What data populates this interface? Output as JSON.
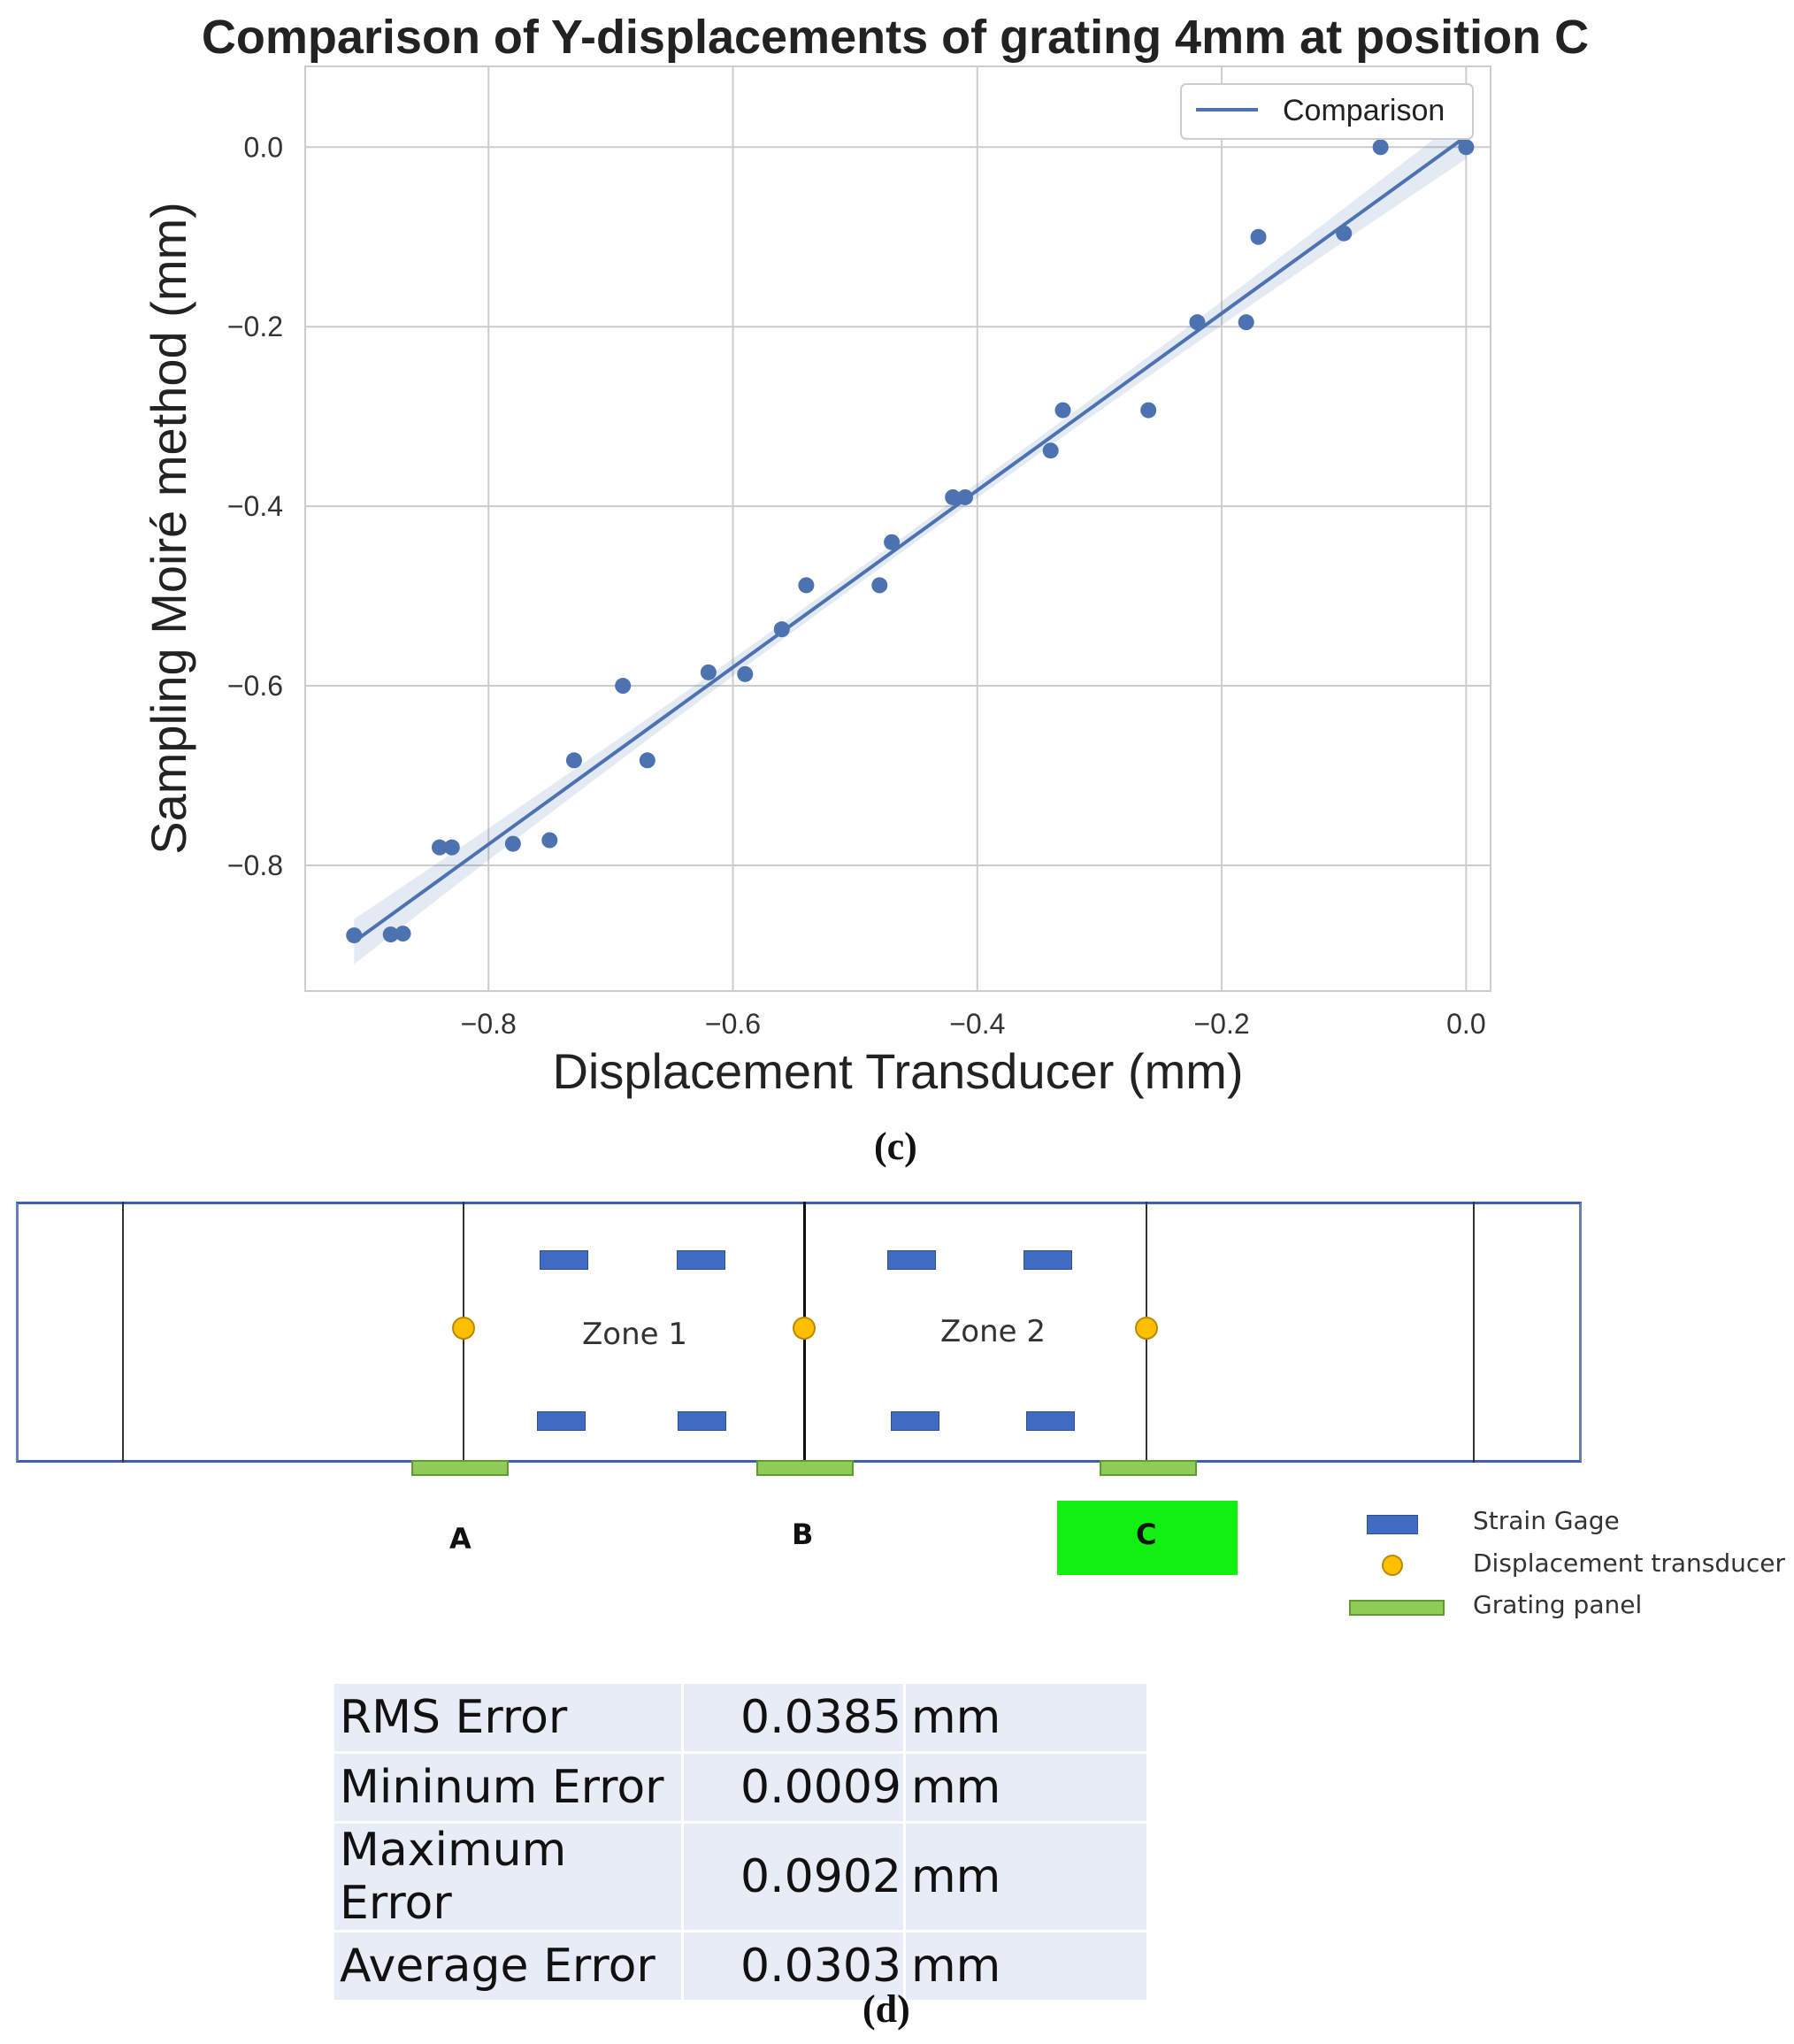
{
  "chart_data": {
    "type": "scatter",
    "title": "Comparison of Y-displacements of grating 4mm at position C",
    "xlabel": "Displacement Transducer (mm)",
    "ylabel": "Sampling Moiré method (mm)",
    "xlim": [
      -0.95,
      0.02
    ],
    "ylim": [
      -0.94,
      0.09
    ],
    "xticks": [
      -0.8,
      -0.6,
      -0.4,
      -0.2,
      0.0
    ],
    "yticks": [
      0.0,
      -0.2,
      -0.4,
      -0.6,
      -0.8
    ],
    "xtick_labels": [
      "−0.8",
      "−0.6",
      "−0.4",
      "−0.2",
      "0.0"
    ],
    "ytick_labels": [
      "0.0",
      "−0.2",
      "−0.4",
      "−0.6",
      "−0.8"
    ],
    "grid": true,
    "legend": {
      "placement": "top-right",
      "entries": [
        "Comparison"
      ]
    },
    "series": [
      {
        "name": "Comparison",
        "color": "#4c72b0",
        "points": [
          [
            -0.91,
            -0.878
          ],
          [
            -0.88,
            -0.877
          ],
          [
            -0.87,
            -0.876
          ],
          [
            -0.84,
            -0.78
          ],
          [
            -0.83,
            -0.78
          ],
          [
            -0.78,
            -0.776
          ],
          [
            -0.75,
            -0.772
          ],
          [
            -0.73,
            -0.683
          ],
          [
            -0.69,
            -0.6
          ],
          [
            -0.67,
            -0.683
          ],
          [
            -0.62,
            -0.585
          ],
          [
            -0.59,
            -0.587
          ],
          [
            -0.56,
            -0.537
          ],
          [
            -0.54,
            -0.488
          ],
          [
            -0.48,
            -0.488
          ],
          [
            -0.47,
            -0.44
          ],
          [
            -0.42,
            -0.39
          ],
          [
            -0.41,
            -0.39
          ],
          [
            -0.34,
            -0.338
          ],
          [
            -0.33,
            -0.293
          ],
          [
            -0.26,
            -0.293
          ],
          [
            -0.22,
            -0.195
          ],
          [
            -0.18,
            -0.195
          ],
          [
            -0.17,
            -0.1
          ],
          [
            -0.1,
            -0.096
          ],
          [
            -0.07,
            0.0
          ],
          [
            0.0,
            0.0
          ]
        ],
        "fit_line": {
          "x": [
            -0.91,
            0.0
          ],
          "y": [
            -0.885,
            0.012
          ]
        }
      }
    ]
  },
  "captions": {
    "c": "(c)",
    "d": "(d)"
  },
  "diagram": {
    "zones": [
      "Zone 1",
      "Zone 2"
    ],
    "positions": [
      "A",
      "B",
      "C"
    ],
    "legend": {
      "strain_gage": "Strain Gage",
      "transducer": "Displacement transducer",
      "grating_panel": "Grating panel"
    },
    "colors": {
      "gage": "#3f6cc2",
      "transducer": "#ffbf00",
      "panel": "#8fcc55",
      "highlight": "#12f012"
    }
  },
  "error_table": [
    {
      "label": "RMS Error",
      "value": "0.0385",
      "unit": "mm"
    },
    {
      "label": "Mininum Error",
      "value": "0.0009",
      "unit": "mm"
    },
    {
      "label": "Maximum Error",
      "value": "0.0902",
      "unit": "mm"
    },
    {
      "label": "Average Error",
      "value": "0.0303",
      "unit": "mm"
    }
  ]
}
